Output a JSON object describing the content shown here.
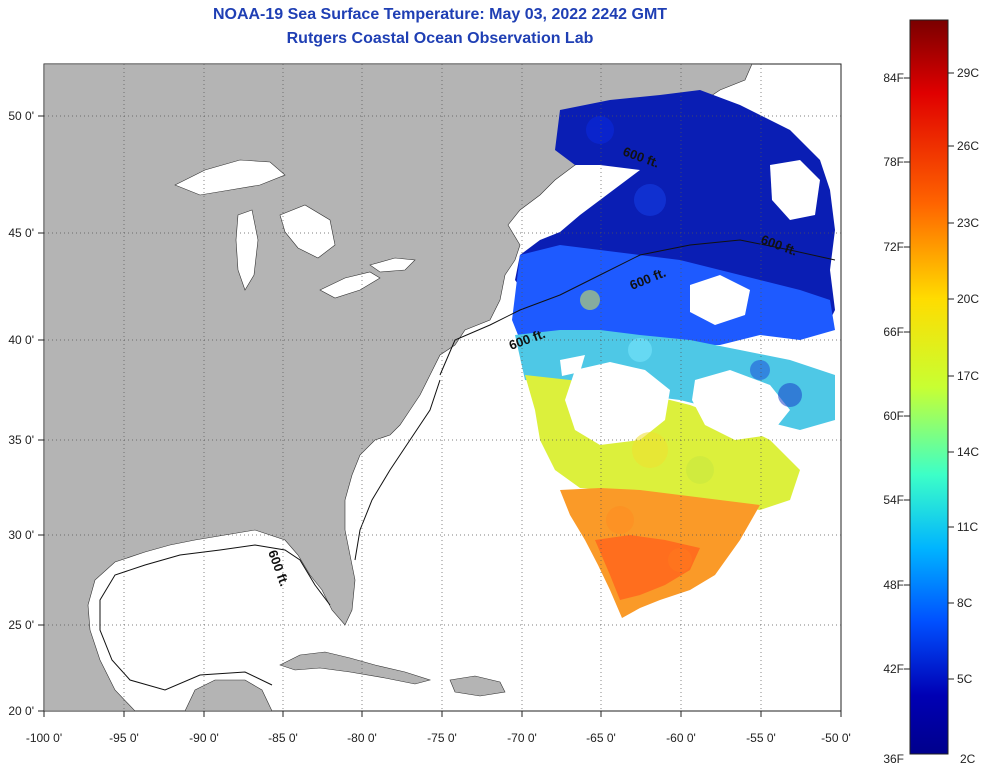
{
  "title": {
    "line1": "NOAA-19 Sea Surface Temperature:  May 03, 2022 2242 GMT",
    "line2": "Rutgers Coastal Ocean Observation Lab"
  },
  "map": {
    "lon_labels": [
      "-100 0'",
      "-95 0'",
      "-90 0'",
      "-85 0'",
      "-80 0'",
      "-75 0'",
      "-70 0'",
      "-65 0'",
      "-60 0'",
      "-55 0'",
      "-50 0'"
    ],
    "lat_labels": [
      "50 0'",
      "45 0'",
      "40 0'",
      "35 0'",
      "30 0'",
      "25 0'",
      "20 0'"
    ],
    "contour_label": "600 ft.",
    "colors": {
      "land": "#b4b4b4",
      "ocean": "#ffffff",
      "grid": "#555555"
    }
  },
  "colorbar": {
    "f_labels": [
      "84F",
      "78F",
      "72F",
      "66F",
      "60F",
      "54F",
      "48F",
      "42F",
      "36F"
    ],
    "c_labels": [
      "29C",
      "26C",
      "23C",
      "20C",
      "17C",
      "14C",
      "11C",
      "8C",
      "5C",
      "2C"
    ],
    "gradient_colors": [
      "#7a0000",
      "#e00000",
      "#ff6400",
      "#ffdc00",
      "#c8ff32",
      "#3cffc8",
      "#00b4ff",
      "#0050ff",
      "#0000b4",
      "#00008c"
    ]
  }
}
